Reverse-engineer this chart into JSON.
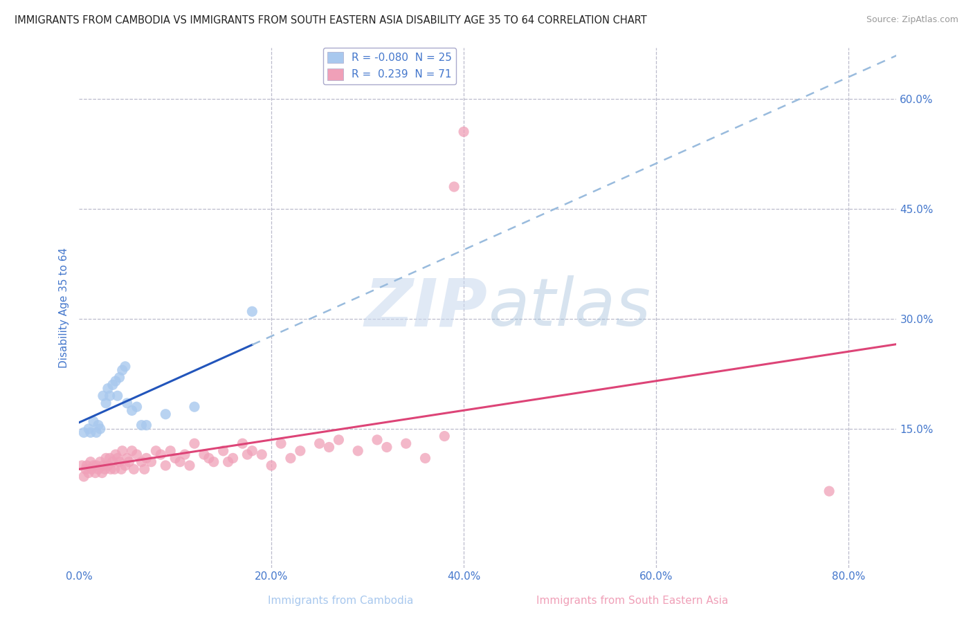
{
  "title": "IMMIGRANTS FROM CAMBODIA VS IMMIGRANTS FROM SOUTH EASTERN ASIA DISABILITY AGE 35 TO 64 CORRELATION CHART",
  "source": "Source: ZipAtlas.com",
  "ylabel_label": "Disability Age 35 to 64",
  "xlabel_label_1": "Immigrants from Cambodia",
  "xlabel_label_2": "Immigrants from South Eastern Asia",
  "xmin": 0.0,
  "xmax": 0.85,
  "ymin": -0.04,
  "ymax": 0.67,
  "watermark_part1": "ZIP",
  "watermark_part2": "atlas",
  "legend_R1": "-0.080",
  "legend_N1": "25",
  "legend_R2": "0.239",
  "legend_N2": "71",
  "blue_color": "#A8C8EE",
  "pink_color": "#F0A0B8",
  "blue_line_color": "#2255BB",
  "pink_line_color": "#DD4477",
  "blue_dash_color": "#99BBDD",
  "grid_color": "#BBBBCC",
  "axis_label_color": "#4477CC",
  "blue_x": [
    0.005,
    0.01,
    0.012,
    0.015,
    0.018,
    0.02,
    0.022,
    0.025,
    0.028,
    0.03,
    0.032,
    0.035,
    0.038,
    0.04,
    0.042,
    0.045,
    0.048,
    0.05,
    0.055,
    0.06,
    0.065,
    0.07,
    0.09,
    0.12,
    0.18
  ],
  "blue_y": [
    0.145,
    0.15,
    0.145,
    0.16,
    0.145,
    0.155,
    0.15,
    0.195,
    0.185,
    0.205,
    0.195,
    0.21,
    0.215,
    0.195,
    0.22,
    0.23,
    0.235,
    0.185,
    0.175,
    0.18,
    0.155,
    0.155,
    0.17,
    0.18,
    0.31
  ],
  "pink_x": [
    0.003,
    0.005,
    0.007,
    0.008,
    0.01,
    0.012,
    0.013,
    0.015,
    0.017,
    0.018,
    0.02,
    0.022,
    0.024,
    0.025,
    0.027,
    0.028,
    0.03,
    0.032,
    0.033,
    0.035,
    0.037,
    0.038,
    0.04,
    0.042,
    0.044,
    0.045,
    0.048,
    0.05,
    0.052,
    0.055,
    0.057,
    0.06,
    0.065,
    0.068,
    0.07,
    0.075,
    0.08,
    0.085,
    0.09,
    0.095,
    0.1,
    0.105,
    0.11,
    0.115,
    0.12,
    0.13,
    0.135,
    0.14,
    0.15,
    0.155,
    0.16,
    0.17,
    0.175,
    0.18,
    0.19,
    0.2,
    0.21,
    0.22,
    0.23,
    0.25,
    0.26,
    0.27,
    0.29,
    0.31,
    0.32,
    0.34,
    0.36,
    0.38,
    0.39,
    0.78,
    0.4
  ],
  "pink_y": [
    0.1,
    0.085,
    0.095,
    0.1,
    0.09,
    0.105,
    0.095,
    0.1,
    0.09,
    0.1,
    0.095,
    0.105,
    0.09,
    0.1,
    0.095,
    0.11,
    0.1,
    0.11,
    0.095,
    0.105,
    0.095,
    0.115,
    0.11,
    0.105,
    0.095,
    0.12,
    0.1,
    0.11,
    0.105,
    0.12,
    0.095,
    0.115,
    0.105,
    0.095,
    0.11,
    0.105,
    0.12,
    0.115,
    0.1,
    0.12,
    0.11,
    0.105,
    0.115,
    0.1,
    0.13,
    0.115,
    0.11,
    0.105,
    0.12,
    0.105,
    0.11,
    0.13,
    0.115,
    0.12,
    0.115,
    0.1,
    0.13,
    0.11,
    0.12,
    0.13,
    0.125,
    0.135,
    0.12,
    0.135,
    0.125,
    0.13,
    0.11,
    0.14,
    0.48,
    0.065,
    0.555
  ]
}
